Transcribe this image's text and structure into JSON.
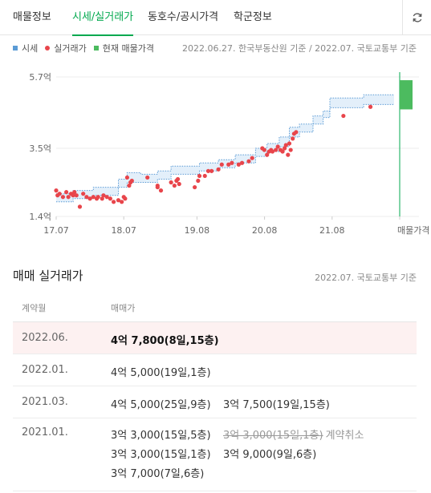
{
  "tabs": [
    {
      "label": "매물정보",
      "active": false
    },
    {
      "label": "시세/실거래가",
      "active": true
    },
    {
      "label": "동호수/공시가격",
      "active": false
    },
    {
      "label": "학군정보",
      "active": false
    }
  ],
  "legend": {
    "market": "시세",
    "actual": "실거래가",
    "listing": "현재 매물가격"
  },
  "chart_source": "2022.06.27. 한국부동산원 기준 / 2022.07. 국토교통부 기준",
  "colors": {
    "accent": "#03a94f",
    "band": "#5b9bd5",
    "band_fill": "#e3effa",
    "dot": "#e8454b",
    "listing": "#4cbb5f"
  },
  "chart_data": {
    "type": "scatter",
    "y_ticks": [
      {
        "value": 5.7,
        "label": "5.7억"
      },
      {
        "value": 3.5,
        "label": "3.5억"
      },
      {
        "value": 1.4,
        "label": "1.4억"
      }
    ],
    "x_ticks": [
      {
        "value": 2017.5,
        "label": "17.07"
      },
      {
        "value": 2018.5,
        "label": "18.07"
      },
      {
        "value": 2019.583,
        "label": "19.08"
      },
      {
        "value": 2020.583,
        "label": "20.08"
      },
      {
        "value": 2021.583,
        "label": "21.08"
      },
      {
        "value": 2022.583,
        "label": "매물가격"
      }
    ],
    "ylim": [
      1.4,
      5.7
    ],
    "grid": true,
    "market_band": {
      "name": "시세",
      "x": [
        2017.5,
        2017.75,
        2017.75,
        2018.05,
        2018.05,
        2018.42,
        2018.42,
        2018.55,
        2018.55,
        2018.75,
        2018.75,
        2019.0,
        2019.0,
        2019.2,
        2019.2,
        2019.42,
        2019.42,
        2019.62,
        2019.62,
        2019.9,
        2019.9,
        2020.15,
        2020.15,
        2020.45,
        2020.45,
        2020.62,
        2020.62,
        2020.8,
        2020.8,
        2020.95,
        2020.95,
        2021.1,
        2021.1,
        2021.3,
        2021.3,
        2021.45,
        2021.45,
        2021.55,
        2021.55,
        2022.05,
        2022.05,
        2022.5
      ],
      "upper": [
        2.1,
        2.1,
        2.2,
        2.2,
        2.3,
        2.3,
        2.55,
        2.55,
        2.75,
        2.75,
        2.7,
        2.7,
        2.8,
        2.8,
        2.95,
        2.95,
        2.95,
        2.95,
        3.05,
        3.05,
        3.15,
        3.15,
        3.3,
        3.3,
        3.5,
        3.5,
        3.65,
        3.65,
        3.85,
        3.85,
        4.15,
        4.15,
        4.25,
        4.25,
        4.5,
        4.5,
        4.65,
        4.65,
        5.05,
        5.05,
        5.15,
        5.15
      ],
      "lower": [
        1.85,
        1.85,
        1.95,
        1.95,
        2.05,
        2.05,
        2.3,
        2.3,
        2.45,
        2.45,
        2.45,
        2.45,
        2.55,
        2.55,
        2.7,
        2.7,
        2.7,
        2.7,
        2.8,
        2.8,
        2.9,
        2.9,
        3.05,
        3.05,
        3.25,
        3.25,
        3.4,
        3.4,
        3.55,
        3.55,
        3.85,
        3.85,
        4.0,
        4.0,
        4.25,
        4.25,
        4.45,
        4.45,
        4.75,
        4.75,
        4.85,
        4.85
      ]
    },
    "actual_points": {
      "name": "실거래가",
      "x": [
        2017.5,
        2017.52,
        2017.55,
        2017.6,
        2017.65,
        2017.68,
        2017.72,
        2017.75,
        2017.77,
        2017.8,
        2017.85,
        2017.9,
        2017.95,
        2018.0,
        2018.05,
        2018.1,
        2018.12,
        2018.18,
        2018.2,
        2018.25,
        2018.3,
        2018.35,
        2018.42,
        2018.47,
        2018.5,
        2018.52,
        2018.55,
        2018.58,
        2018.6,
        2018.62,
        2018.85,
        2019.0,
        2019.0,
        2019.05,
        2019.2,
        2019.25,
        2019.28,
        2019.3,
        2019.32,
        2019.55,
        2019.6,
        2019.62,
        2019.7,
        2019.75,
        2019.8,
        2019.9,
        2019.95,
        2020.05,
        2020.1,
        2020.2,
        2020.25,
        2020.35,
        2020.4,
        2020.55,
        2020.58,
        2020.62,
        2020.65,
        2020.68,
        2020.7,
        2020.75,
        2020.78,
        2020.82,
        2020.85,
        2020.88,
        2020.9,
        2020.93,
        2020.95,
        2020.97,
        2021.0,
        2021.02,
        2021.05,
        2021.75,
        2022.15
      ],
      "y": [
        2.2,
        2.05,
        2.1,
        2.0,
        2.15,
        2.0,
        2.1,
        2.05,
        2.15,
        2.05,
        1.7,
        2.1,
        2.0,
        1.95,
        2.0,
        1.95,
        2.0,
        1.95,
        2.05,
        2.0,
        1.95,
        1.85,
        1.9,
        1.85,
        2.0,
        1.95,
        2.6,
        2.35,
        2.45,
        2.5,
        2.6,
        2.3,
        2.35,
        2.2,
        2.45,
        2.35,
        2.5,
        2.55,
        2.4,
        2.3,
        2.5,
        2.65,
        2.65,
        2.8,
        2.8,
        2.85,
        3.0,
        3.0,
        3.05,
        3.0,
        3.05,
        3.1,
        3.2,
        3.5,
        3.45,
        3.3,
        3.4,
        3.45,
        3.4,
        3.45,
        3.55,
        3.45,
        3.4,
        3.5,
        3.6,
        3.3,
        3.65,
        3.45,
        3.8,
        3.95,
        4.0,
        4.5,
        4.78
      ]
    },
    "listing_range": {
      "name": "현재 매물가격",
      "x": 2022.583,
      "low": 4.7,
      "high": 5.6
    }
  },
  "trades_section": {
    "title": "매매 실거래가",
    "source": "2022.07. 국토교통부 기준",
    "col_month": "계약월",
    "col_price": "매매가",
    "rows": [
      {
        "month": "2022.06.",
        "highlight": true,
        "lines": [
          [
            {
              "price": "4억 7,800(8일,15층)"
            }
          ]
        ]
      },
      {
        "month": "2022.01.",
        "highlight": false,
        "lines": [
          [
            {
              "price": "4억 5,000(19일,1층)"
            }
          ]
        ]
      },
      {
        "month": "2021.03.",
        "highlight": false,
        "lines": [
          [
            {
              "price": "4억 5,000(25일,9층)"
            },
            {
              "price": "3억 7,500(19일,15층)"
            }
          ]
        ]
      },
      {
        "month": "2021.01.",
        "highlight": false,
        "lines": [
          [
            {
              "price": "3억 3,000(15일,5층)"
            },
            {
              "price": "3억 3,000(15일,1층)",
              "cancelled": true,
              "note": "계약취소"
            }
          ],
          [
            {
              "price": "3억 3,000(15일,1층)"
            },
            {
              "price": "3억 9,000(9일,6층)"
            }
          ],
          [
            {
              "price": "3억 7,000(7일,6층)"
            }
          ]
        ]
      }
    ]
  }
}
